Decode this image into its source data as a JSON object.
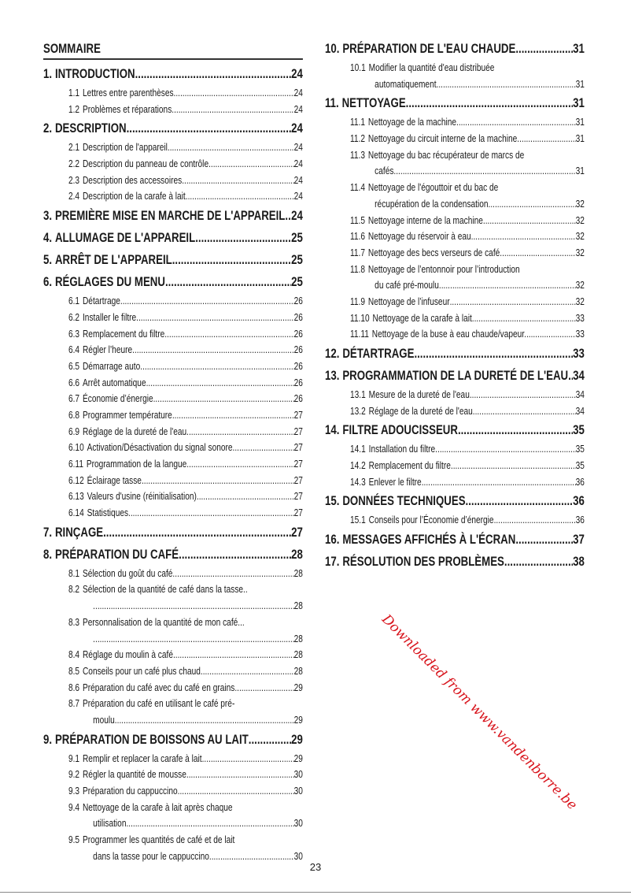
{
  "title": "SOMMAIRE",
  "page_number": "23",
  "watermark": "Downloaded from www.vandenborre.be",
  "left": [
    {
      "t": "h",
      "num": "1.",
      "title": "INTRODUCTION",
      "page": "24"
    },
    {
      "t": "s",
      "num": "1.1",
      "title": "Lettres entre parenthèses",
      "page": "24"
    },
    {
      "t": "s",
      "num": "1.2",
      "title": "Problèmes et réparations",
      "page": "24"
    },
    {
      "t": "h",
      "num": "2.",
      "title": "DESCRIPTION",
      "page": "24"
    },
    {
      "t": "s",
      "num": "2.1",
      "title": "Description de l'appareil",
      "page": "24"
    },
    {
      "t": "s",
      "num": "2.2",
      "title": "Description du panneau de contrôle",
      "page": "24"
    },
    {
      "t": "s",
      "num": "2.3",
      "title": "Description des accessoires",
      "page": "24"
    },
    {
      "t": "s",
      "num": "2.4",
      "title": "Description de la carafe à lait",
      "page": "24"
    },
    {
      "t": "h",
      "num": "3.",
      "title": "PREMIÈRE MISE EN MARCHE DE L'APPAREIL",
      "page": "24"
    },
    {
      "t": "h",
      "num": "4.",
      "title": "ALLUMAGE DE L'APPAREIL",
      "page": "25"
    },
    {
      "t": "h",
      "num": "5.",
      "title": "ARRÊT DE L'APPAREIL",
      "page": "25"
    },
    {
      "t": "h",
      "num": "6.",
      "title": "RÉGLAGES DU MENU",
      "page": "25"
    },
    {
      "t": "s",
      "num": "6.1",
      "title": "Détartrage",
      "page": "26"
    },
    {
      "t": "s",
      "num": "6.2",
      "title": "Installer le filtre",
      "page": "26"
    },
    {
      "t": "s",
      "num": "6.3",
      "title": "Remplacement du filtre",
      "page": "26"
    },
    {
      "t": "s",
      "num": "6.4",
      "title": "Régler l’heure",
      "page": "26"
    },
    {
      "t": "s",
      "num": "6.5",
      "title": "Démarrage auto",
      "page": "26"
    },
    {
      "t": "s",
      "num": "6.6",
      "title": "Arrêt automatique",
      "page": "26"
    },
    {
      "t": "s",
      "num": "6.7",
      "title": "Économie d’énergie",
      "page": "26"
    },
    {
      "t": "s",
      "num": "6.8",
      "title": "Programmer température",
      "page": "27"
    },
    {
      "t": "s",
      "num": "6.9",
      "title": "Réglage de la dureté de l'eau",
      "page": "27"
    },
    {
      "t": "s",
      "num": "6.10",
      "title": "Activation/Désactivation du signal sonore",
      "page": "27"
    },
    {
      "t": "s",
      "num": "6.11",
      "title": "Programmation de la langue",
      "page": "27"
    },
    {
      "t": "s",
      "num": "6.12",
      "title": "Éclairage tasse",
      "page": "27"
    },
    {
      "t": "s",
      "num": "6.13",
      "title": "Valeurs d'usine (réinitialisation)",
      "page": "27"
    },
    {
      "t": "s",
      "num": "6.14",
      "title": "Statistiques",
      "page": "27"
    },
    {
      "t": "h",
      "num": "7.",
      "title": "RINÇAGE",
      "page": "27"
    },
    {
      "t": "h",
      "num": "8.",
      "title": "PRÉPARATION DU CAFÉ",
      "page": "28"
    },
    {
      "t": "s",
      "num": "8.1",
      "title": "Sélection du goût du café",
      "page": "28"
    },
    {
      "t": "s",
      "num": "8.2",
      "title": "Sélection de la quantité de café dans la tasse..",
      "cont": "",
      "page": "28"
    },
    {
      "t": "s",
      "num": "8.3",
      "title": "Personnalisation de la quantité de mon café...",
      "cont": "",
      "page": "28"
    },
    {
      "t": "s",
      "num": "8.4",
      "title": "Réglage du moulin à café",
      "page": "28"
    },
    {
      "t": "s",
      "num": "8.5",
      "title": "Conseils pour un café plus chaud",
      "page": "28"
    },
    {
      "t": "s",
      "num": "8.6",
      "title": "Préparation du café avec du café en grains",
      "page": "29"
    },
    {
      "t": "s",
      "num": "8.7",
      "title": "Préparation du café en utilisant le café pré-",
      "cont": "moulu",
      "page": "29"
    },
    {
      "t": "h",
      "num": "9.",
      "title": "PRÉPARATION DE BOISSONS AU LAIT",
      "page": "29"
    },
    {
      "t": "s",
      "num": "9.1",
      "title": "Remplir et replacer la carafe à lait",
      "page": "29"
    },
    {
      "t": "s",
      "num": "9.2",
      "title": "Régler la quantité de mousse",
      "page": "30"
    },
    {
      "t": "s",
      "num": "9.3",
      "title": "Préparation du cappuccino",
      "page": "30"
    },
    {
      "t": "s",
      "num": "9.4",
      "title": "Nettoyage de la carafe à lait après chaque",
      "cont": "utilisation",
      "page": "30"
    },
    {
      "t": "s",
      "num": "9.5",
      "title": "Programmer les quantités de café et de lait",
      "cont": "dans la tasse pour le cappuccino",
      "page": "30"
    }
  ],
  "right": [
    {
      "t": "h",
      "num": "10.",
      "title": "PRÉPARATION DE L'EAU CHAUDE",
      "page": "31"
    },
    {
      "t": "s",
      "num": "10.1",
      "title": "Modifier la quantité d'eau distribuée",
      "cont": "automatiquement",
      "page": "31"
    },
    {
      "t": "h",
      "num": "11.",
      "title": "NETTOYAGE",
      "page": "31"
    },
    {
      "t": "s",
      "num": "11.1",
      "title": "Nettoyage de la machine",
      "page": "31"
    },
    {
      "t": "s",
      "num": "11.2",
      "title": "Nettoyage du circuit interne de la machine",
      "page": "31"
    },
    {
      "t": "s",
      "num": "11.3",
      "title": "Nettoyage du bac récupérateur de marcs de",
      "cont": "cafés",
      "page": "31"
    },
    {
      "t": "s",
      "num": "11.4",
      "title": "Nettoyage de l'égouttoir et du bac de",
      "cont": "récupération de la condensation",
      "page": "32"
    },
    {
      "t": "s",
      "num": "11.5",
      "title": "Nettoyage interne de la machine",
      "page": "32"
    },
    {
      "t": "s",
      "num": "11.6",
      "title": "Nettoyage du réservoir à eau",
      "page": "32"
    },
    {
      "t": "s",
      "num": "11.7",
      "title": "Nettoyage des becs verseurs de café",
      "page": "32"
    },
    {
      "t": "s",
      "num": "11.8",
      "title": "Nettoyage de l’entonnoir pour l’introduction",
      "cont": "du café pré-moulu",
      "page": "32"
    },
    {
      "t": "s",
      "num": "11.9",
      "title": "Nettoyage de l’infuseur",
      "page": "32"
    },
    {
      "t": "s",
      "num": "11.10",
      "title": "Nettoyage de la carafe à lait",
      "page": "33"
    },
    {
      "t": "s",
      "num": "11.11",
      "title": "Nettoyage de la buse à eau chaude/vapeur.",
      "page": "33"
    },
    {
      "t": "h",
      "num": "12.",
      "title": "DÉTARTRAGE",
      "page": "33"
    },
    {
      "t": "h",
      "num": "13.",
      "title": "PROGRAMMATION DE LA DURETÉ DE L'EAU",
      "page": "34"
    },
    {
      "t": "s",
      "num": "13.1",
      "title": "Mesure de la dureté de l'eau",
      "page": "34"
    },
    {
      "t": "s",
      "num": "13.2",
      "title": "Réglage de la dureté de l'eau",
      "page": "34"
    },
    {
      "t": "h",
      "num": "14.",
      "title": "FILTRE ADOUCISSEUR",
      "page": "35"
    },
    {
      "t": "s",
      "num": "14.1",
      "title": "Installation du filtre",
      "page": "35"
    },
    {
      "t": "s",
      "num": "14.2",
      "title": "Remplacement du filtre",
      "page": "35"
    },
    {
      "t": "s",
      "num": "14.3",
      "title": "Enlever le filtre",
      "page": "36"
    },
    {
      "t": "h",
      "num": "15.",
      "title": "DONNÉES TECHNIQUES",
      "page": "36"
    },
    {
      "t": "s",
      "num": "15.1",
      "title": "Conseils pour l’Économie d’énergie",
      "page": "36"
    },
    {
      "t": "h",
      "num": "16.",
      "title": "MESSAGES AFFICHÉS À L'ÉCRAN",
      "page": "37"
    },
    {
      "t": "h",
      "num": "17.",
      "title": "RÉSOLUTION DES PROBLÈMES",
      "page": "38"
    }
  ]
}
